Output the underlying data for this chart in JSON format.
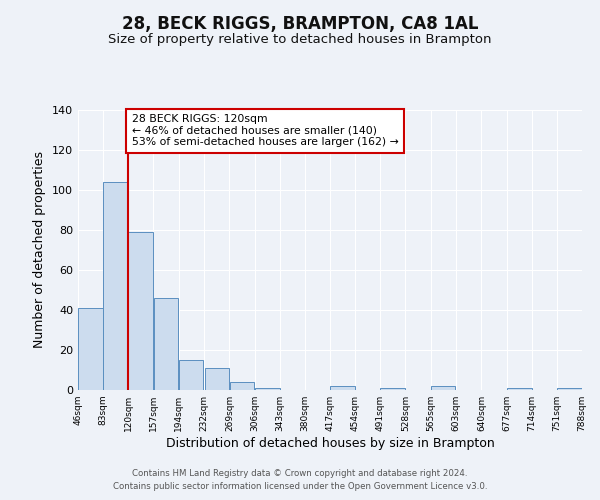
{
  "title": "28, BECK RIGGS, BRAMPTON, CA8 1AL",
  "subtitle": "Size of property relative to detached houses in Brampton",
  "xlabel": "Distribution of detached houses by size in Brampton",
  "ylabel": "Number of detached properties",
  "bin_edges": [
    46,
    83,
    120,
    157,
    194,
    232,
    269,
    306,
    343,
    380,
    417,
    454,
    491,
    528,
    565,
    603,
    640,
    677,
    714,
    751,
    788
  ],
  "counts": [
    41,
    104,
    79,
    46,
    15,
    11,
    4,
    1,
    0,
    0,
    2,
    0,
    1,
    0,
    2,
    0,
    0,
    1,
    0,
    1
  ],
  "bar_color": "#ccdcee",
  "bar_edge_color": "#5a8fc0",
  "property_line_x": 120,
  "property_line_color": "#cc0000",
  "annotation_text": "28 BECK RIGGS: 120sqm\n← 46% of detached houses are smaller (140)\n53% of semi-detached houses are larger (162) →",
  "annotation_box_color": "#ffffff",
  "annotation_box_edge_color": "#cc0000",
  "ylim": [
    0,
    140
  ],
  "yticks": [
    0,
    20,
    40,
    60,
    80,
    100,
    120,
    140
  ],
  "tick_labels": [
    "46sqm",
    "83sqm",
    "120sqm",
    "157sqm",
    "194sqm",
    "232sqm",
    "269sqm",
    "306sqm",
    "343sqm",
    "380sqm",
    "417sqm",
    "454sqm",
    "491sqm",
    "528sqm",
    "565sqm",
    "603sqm",
    "640sqm",
    "677sqm",
    "714sqm",
    "751sqm",
    "788sqm"
  ],
  "footer1": "Contains HM Land Registry data © Crown copyright and database right 2024.",
  "footer2": "Contains public sector information licensed under the Open Government Licence v3.0.",
  "background_color": "#eef2f8",
  "grid_color": "#ffffff",
  "title_fontsize": 12,
  "subtitle_fontsize": 9.5,
  "axis_label_fontsize": 9,
  "footer_fontsize": 6.2
}
